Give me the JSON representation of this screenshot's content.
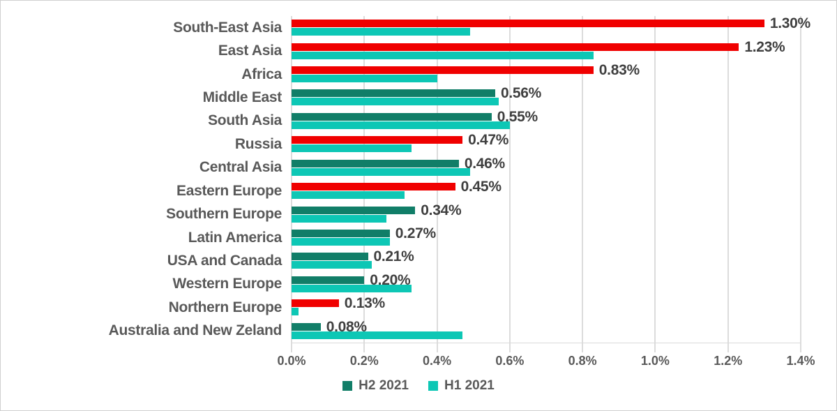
{
  "chart_data": {
    "type": "bar",
    "orientation": "horizontal",
    "title": "",
    "categories": [
      "South-East Asia",
      "East Asia",
      "Africa",
      "Middle East",
      "South Asia",
      "Russia",
      "Central Asia",
      "Eastern Europe",
      "Southern Europe",
      "Latin America",
      "USA and Canada",
      "Western Europe",
      "Northern Europe",
      "Australia and New Zeland"
    ],
    "series": [
      {
        "name": "H2 2021",
        "values": [
          1.3,
          1.23,
          0.83,
          0.56,
          0.55,
          0.47,
          0.46,
          0.45,
          0.34,
          0.27,
          0.21,
          0.2,
          0.13,
          0.08
        ],
        "data_labels": [
          "1.30%",
          "1.23%",
          "0.83%",
          "0.56%",
          "0.55%",
          "0.47%",
          "0.46%",
          "0.45%",
          "0.34%",
          "0.27%",
          "0.21%",
          "0.20%",
          "0.13%",
          "0.08%"
        ],
        "bar_color_keys": [
          "red",
          "red",
          "red",
          "green",
          "green",
          "red",
          "green",
          "red",
          "green",
          "green",
          "green",
          "green",
          "red",
          "green"
        ]
      },
      {
        "name": "H1 2021",
        "values": [
          0.49,
          0.83,
          0.4,
          0.57,
          0.6,
          0.33,
          0.49,
          0.31,
          0.26,
          0.27,
          0.22,
          0.33,
          0.02,
          0.47
        ],
        "data_labels": [],
        "color_key": "cyan"
      }
    ],
    "xlim": [
      0,
      1.4
    ],
    "x_ticks": [
      "0.0%",
      "0.2%",
      "0.4%",
      "0.6%",
      "0.8%",
      "1.0%",
      "1.2%",
      "1.4%"
    ],
    "grid": true,
    "legend_position": "bottom",
    "legend": [
      {
        "label": "H2 2021",
        "color_key": "green"
      },
      {
        "label": "H1 2021",
        "color_key": "cyan"
      }
    ]
  },
  "colors": {
    "red": "#f00000",
    "green": "#117e68",
    "cyan": "#0dc7b5",
    "grid": "#dcdcdc",
    "axis": "#d9d9d9",
    "category_text": "#595959",
    "tick_text": "#595959",
    "value_text": "#3f3f3f",
    "border": "#cfcfcf"
  }
}
